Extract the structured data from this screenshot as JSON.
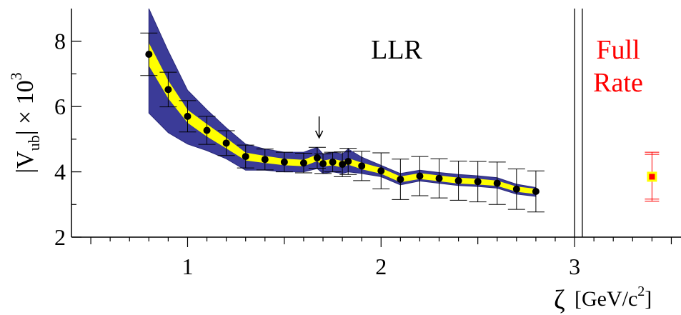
{
  "chart_data": {
    "type": "scatter",
    "xlim": [
      0.4,
      3.55
    ],
    "ylim": [
      2,
      9
    ],
    "x_ticks": [
      1,
      2,
      3
    ],
    "y_ticks": [
      2,
      4,
      6,
      8
    ],
    "ylabel_main": "|V",
    "ylabel_sub": "ub",
    "ylabel_rest": "| × 10",
    "ylabel_sup": "3",
    "xlabel_symbol": "ζ",
    "xlabel_unit": "[GeV/c",
    "xlabel_sup": "2",
    "xlabel_close": "]",
    "llr_label": "LLR",
    "full_rate_label_line1": "Full",
    "full_rate_label_line2": "Rate",
    "divider_x": [
      3.0,
      3.04
    ],
    "arrow_x": 1.68,
    "points": [
      {
        "x": 0.8,
        "y": 7.6,
        "err": 0.65
      },
      {
        "x": 0.9,
        "y": 6.52,
        "err": 0.53
      },
      {
        "x": 1.0,
        "y": 5.7,
        "err": 0.48
      },
      {
        "x": 1.1,
        "y": 5.27,
        "err": 0.43
      },
      {
        "x": 1.2,
        "y": 4.88,
        "err": 0.38
      },
      {
        "x": 1.3,
        "y": 4.47,
        "err": 0.35
      },
      {
        "x": 1.4,
        "y": 4.38,
        "err": 0.32
      },
      {
        "x": 1.5,
        "y": 4.3,
        "err": 0.3
      },
      {
        "x": 1.6,
        "y": 4.27,
        "err": 0.3
      },
      {
        "x": 1.67,
        "y": 4.43,
        "err": 0.32
      },
      {
        "x": 1.7,
        "y": 4.25,
        "err": 0.3
      },
      {
        "x": 1.75,
        "y": 4.3,
        "err": 0.3
      },
      {
        "x": 1.8,
        "y": 4.23,
        "err": 0.38
      },
      {
        "x": 1.83,
        "y": 4.32,
        "err": 0.4
      },
      {
        "x": 1.9,
        "y": 4.18,
        "err": 0.45
      },
      {
        "x": 2.0,
        "y": 4.03,
        "err": 0.55
      },
      {
        "x": 2.1,
        "y": 3.77,
        "err": 0.62
      },
      {
        "x": 2.2,
        "y": 3.87,
        "err": 0.6
      },
      {
        "x": 2.3,
        "y": 3.8,
        "err": 0.6
      },
      {
        "x": 2.4,
        "y": 3.73,
        "err": 0.6
      },
      {
        "x": 2.5,
        "y": 3.7,
        "err": 0.62
      },
      {
        "x": 2.6,
        "y": 3.65,
        "err": 0.65
      },
      {
        "x": 2.7,
        "y": 3.47,
        "err": 0.62
      },
      {
        "x": 2.8,
        "y": 3.4,
        "err": 0.63
      }
    ],
    "yellow_band": {
      "x": [
        0.8,
        0.9,
        1.0,
        1.1,
        1.2,
        1.3,
        1.4,
        1.5,
        1.6,
        1.67,
        1.7,
        1.75,
        1.8,
        1.83,
        1.9,
        2.0,
        2.1,
        2.2,
        2.3,
        2.4,
        2.5,
        2.6,
        2.7,
        2.8
      ],
      "lower": [
        7.25,
        6.25,
        5.5,
        5.08,
        4.72,
        4.35,
        4.27,
        4.2,
        4.17,
        4.33,
        4.16,
        4.2,
        4.13,
        4.22,
        4.08,
        3.94,
        3.68,
        3.78,
        3.71,
        3.64,
        3.61,
        3.57,
        3.39,
        3.32
      ],
      "upper": [
        7.95,
        6.8,
        5.9,
        5.46,
        5.04,
        4.59,
        4.49,
        4.4,
        4.37,
        4.53,
        4.34,
        4.4,
        4.33,
        4.42,
        4.28,
        4.12,
        3.86,
        3.96,
        3.89,
        3.82,
        3.79,
        3.73,
        3.55,
        3.48
      ]
    },
    "blue_band": {
      "x": [
        0.8,
        0.9,
        1.0,
        1.1,
        1.2,
        1.3,
        1.4,
        1.5,
        1.6,
        1.67,
        1.7,
        1.75,
        1.8,
        1.83,
        1.9,
        2.0,
        2.1,
        2.2,
        2.3,
        2.4,
        2.5,
        2.6,
        2.7,
        2.8
      ],
      "lower": [
        5.8,
        5.2,
        4.85,
        4.65,
        4.4,
        4.05,
        4.05,
        4.0,
        4.0,
        4.1,
        3.95,
        4.0,
        3.95,
        4.0,
        3.95,
        3.85,
        3.6,
        3.72,
        3.65,
        3.58,
        3.55,
        3.5,
        3.32,
        3.25
      ],
      "upper": [
        9.0,
        7.7,
        6.5,
        5.9,
        5.35,
        4.85,
        4.7,
        4.6,
        4.6,
        4.75,
        4.55,
        4.6,
        4.55,
        4.7,
        4.45,
        4.2,
        3.95,
        4.05,
        3.98,
        3.92,
        3.88,
        3.82,
        3.62,
        3.52
      ]
    },
    "full_rate_point": {
      "x": 3.4,
      "y": 3.85,
      "err_up": 0.75,
      "err_down": 0.75
    }
  }
}
